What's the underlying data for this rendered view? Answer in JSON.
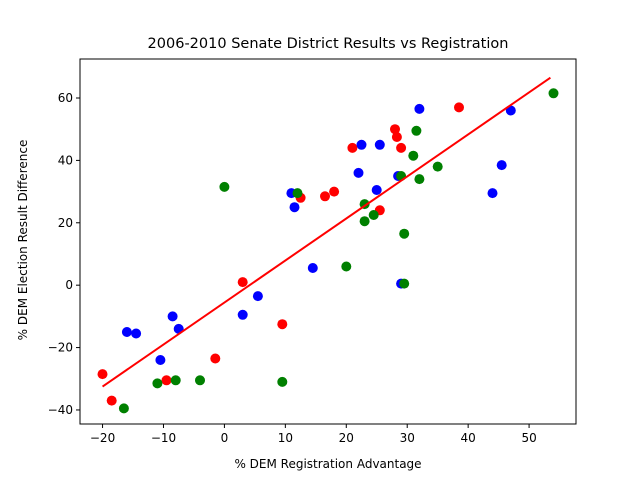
{
  "chart_data": {
    "type": "scatter",
    "title": "2006-2010 Senate District Results vs Registration",
    "xlabel": "% DEM Registration Advantage",
    "ylabel": "% DEM Election Result Difference",
    "xlim": [
      -23.7,
      57.7
    ],
    "ylim": [
      -44.5,
      72.5
    ],
    "xticks": [
      -20,
      -10,
      0,
      10,
      20,
      30,
      40,
      50
    ],
    "yticks": [
      -40,
      -20,
      0,
      20,
      40,
      60
    ],
    "grid": false,
    "legend": "none",
    "series": [
      {
        "color": "#ff0000",
        "points": [
          [
            -20,
            -28.5
          ],
          [
            -18.5,
            -37
          ],
          [
            -9.5,
            -30.5
          ],
          [
            -1.5,
            -23.5
          ],
          [
            3,
            1
          ],
          [
            9.5,
            -12.5
          ],
          [
            12.5,
            28
          ],
          [
            16.5,
            28.5
          ],
          [
            18,
            30
          ],
          [
            21,
            44
          ],
          [
            25.5,
            24
          ],
          [
            28,
            50
          ],
          [
            28.3,
            47.5
          ],
          [
            29,
            44
          ],
          [
            38.5,
            57
          ]
        ]
      },
      {
        "color": "#0000ff",
        "points": [
          [
            -16,
            -15
          ],
          [
            -14.5,
            -15.5
          ],
          [
            -10.5,
            -24
          ],
          [
            -8.5,
            -10
          ],
          [
            -7.5,
            -14
          ],
          [
            3,
            -9.5
          ],
          [
            5.5,
            -3.5
          ],
          [
            11,
            29.5
          ],
          [
            11.5,
            25
          ],
          [
            14.5,
            5.5
          ],
          [
            22,
            36
          ],
          [
            22.5,
            45
          ],
          [
            25,
            30.5
          ],
          [
            25.5,
            45
          ],
          [
            28.5,
            35
          ],
          [
            29,
            0.5
          ],
          [
            32,
            56.5
          ],
          [
            44,
            29.5
          ],
          [
            45.5,
            38.5
          ],
          [
            47,
            56
          ]
        ]
      },
      {
        "color": "#008000",
        "points": [
          [
            -16.5,
            -39.5
          ],
          [
            -11,
            -31.5
          ],
          [
            -8,
            -30.5
          ],
          [
            -4,
            -30.5
          ],
          [
            0,
            31.5
          ],
          [
            9.5,
            -31
          ],
          [
            12,
            29.5
          ],
          [
            20,
            6
          ],
          [
            23,
            26
          ],
          [
            23,
            20.5
          ],
          [
            24.5,
            22.5
          ],
          [
            29,
            35
          ],
          [
            29.5,
            16.5
          ],
          [
            29.5,
            0.5
          ],
          [
            31,
            41.5
          ],
          [
            31.5,
            49.5
          ],
          [
            32,
            34
          ],
          [
            35,
            38
          ],
          [
            54,
            61.5
          ]
        ]
      }
    ],
    "fit_line": {
      "color": "#ff0000",
      "x": [
        -20,
        53.5
      ],
      "y": [
        -32.5,
        66.5
      ]
    }
  }
}
